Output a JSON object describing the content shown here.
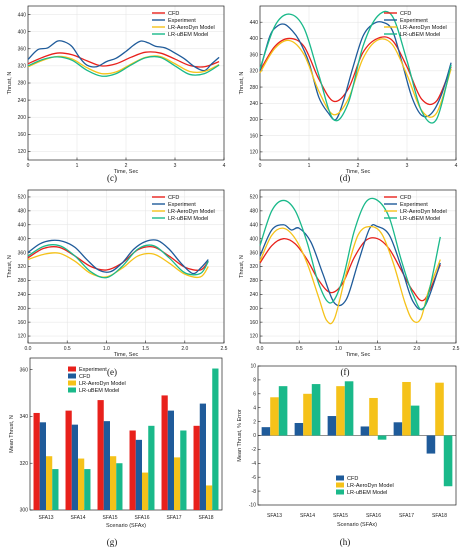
{
  "colors": {
    "cfd": "#e8211c",
    "experiment": "#1f5b9a",
    "aerodyn": "#f5c21a",
    "ubem": "#1ab98a",
    "bar_experiment": "#e8211c",
    "bar_cfd": "#1f5b9a",
    "bar_aerodyn": "#f5c21a",
    "bar_ubem": "#1ab98a"
  },
  "line_legend": [
    "CFD",
    "Experiment",
    "LR-AeroDyn Model",
    "LR-uBEM Model"
  ],
  "bar_legend": [
    "Experiment",
    "CFD",
    "LR-AeroDyn Model",
    "LR-uBEM Model"
  ],
  "chart_data": [
    {
      "id": "c",
      "type": "line",
      "caption": "(c)",
      "xlabel": "Time, Sec",
      "ylabel": "Thrust, N",
      "xlim": [
        0,
        4
      ],
      "ylim": [
        100,
        460
      ],
      "xticks": [
        0,
        1,
        2,
        3,
        4
      ],
      "yticks": [
        120,
        160,
        200,
        240,
        280,
        320,
        360,
        400,
        440
      ],
      "legend_position": "top-right",
      "series": [
        {
          "name": "CFD",
          "x": [
            0,
            0.3,
            0.6,
            0.9,
            1.2,
            1.5,
            1.8,
            2.1,
            2.4,
            2.7,
            3.0,
            3.3,
            3.6,
            3.9
          ],
          "y": [
            325,
            340,
            350,
            346,
            332,
            320,
            325,
            340,
            352,
            350,
            336,
            321,
            318,
            330
          ]
        },
        {
          "name": "Experiment",
          "x": [
            0,
            0.2,
            0.4,
            0.6,
            0.75,
            0.9,
            1.05,
            1.2,
            1.4,
            1.6,
            1.8,
            2.0,
            2.15,
            2.3,
            2.45,
            2.6,
            2.8,
            3.0,
            3.2,
            3.4,
            3.6,
            3.75,
            3.9
          ],
          "y": [
            335,
            358,
            362,
            378,
            376,
            365,
            340,
            322,
            318,
            330,
            338,
            354,
            368,
            378,
            374,
            366,
            362,
            350,
            336,
            318,
            309,
            325,
            340
          ]
        },
        {
          "name": "LR-AeroDyn Model",
          "x": [
            0,
            0.3,
            0.6,
            0.9,
            1.2,
            1.5,
            1.8,
            2.1,
            2.4,
            2.7,
            3.0,
            3.3,
            3.6,
            3.9
          ],
          "y": [
            318,
            333,
            342,
            336,
            316,
            302,
            306,
            324,
            340,
            342,
            325,
            307,
            307,
            323
          ]
        },
        {
          "name": "LR-uBEM Model",
          "x": [
            0,
            0.3,
            0.6,
            0.9,
            1.2,
            1.5,
            1.8,
            2.1,
            2.4,
            2.7,
            3.0,
            3.3,
            3.6,
            3.9
          ],
          "y": [
            320,
            335,
            341,
            333,
            310,
            296,
            302,
            322,
            339,
            340,
            320,
            300,
            302,
            322
          ]
        }
      ]
    },
    {
      "id": "d",
      "type": "line",
      "caption": "(d)",
      "xlabel": "Time, Sec",
      "ylabel": "Thrust, N",
      "xlim": [
        0,
        4
      ],
      "ylim": [
        100,
        480
      ],
      "xticks": [
        0,
        1,
        2,
        3,
        4
      ],
      "yticks": [
        120,
        160,
        200,
        240,
        280,
        320,
        360,
        400,
        440
      ],
      "legend_position": "top-right",
      "series": [
        {
          "name": "CFD",
          "x": [
            0,
            0.3,
            0.6,
            0.9,
            1.2,
            1.5,
            1.8,
            2.1,
            2.4,
            2.7,
            3.0,
            3.3,
            3.6,
            3.9
          ],
          "y": [
            320,
            380,
            400,
            380,
            300,
            245,
            275,
            365,
            400,
            395,
            330,
            250,
            245,
            330
          ]
        },
        {
          "name": "Experiment",
          "x": [
            0,
            0.2,
            0.35,
            0.5,
            0.65,
            0.8,
            1.0,
            1.2,
            1.4,
            1.55,
            1.7,
            1.9,
            2.1,
            2.3,
            2.5,
            2.7,
            2.9,
            3.1,
            3.3,
            3.5,
            3.7,
            3.9
          ],
          "y": [
            320,
            405,
            430,
            435,
            420,
            395,
            340,
            255,
            215,
            200,
            245,
            330,
            405,
            435,
            440,
            420,
            340,
            255,
            210,
            215,
            260,
            340
          ]
        },
        {
          "name": "LR-AeroDyn Model",
          "x": [
            0,
            0.3,
            0.6,
            0.9,
            1.2,
            1.5,
            1.8,
            2.1,
            2.4,
            2.7,
            3.0,
            3.3,
            3.6,
            3.9
          ],
          "y": [
            315,
            375,
            395,
            360,
            270,
            212,
            250,
            350,
            396,
            385,
            310,
            222,
            215,
            325
          ]
        },
        {
          "name": "LR-uBEM Model",
          "x": [
            0,
            0.3,
            0.6,
            0.9,
            1.2,
            1.5,
            1.8,
            2.1,
            2.4,
            2.7,
            3.0,
            3.3,
            3.6,
            3.9
          ],
          "y": [
            325,
            430,
            460,
            425,
            310,
            200,
            240,
            380,
            455,
            455,
            345,
            220,
            200,
            335
          ]
        }
      ]
    },
    {
      "id": "e",
      "type": "line",
      "caption": "(e)",
      "xlabel": "Time, Sec",
      "ylabel": "Thrust, N",
      "xlim": [
        0,
        2.5
      ],
      "ylim": [
        100,
        540
      ],
      "xticks": [
        0.0,
        0.5,
        1.0,
        1.5,
        2.0,
        2.5
      ],
      "yticks": [
        120,
        160,
        200,
        240,
        280,
        320,
        360,
        400,
        440,
        480,
        520
      ],
      "legend_position": "top-right",
      "series": [
        {
          "name": "CFD",
          "x": [
            0,
            0.2,
            0.4,
            0.6,
            0.8,
            1.0,
            1.2,
            1.4,
            1.6,
            1.8,
            2.0,
            2.2,
            2.3
          ],
          "y": [
            345,
            372,
            375,
            350,
            320,
            310,
            330,
            368,
            376,
            350,
            318,
            310,
            335
          ]
        },
        {
          "name": "Experiment",
          "x": [
            0,
            0.15,
            0.3,
            0.45,
            0.6,
            0.75,
            0.9,
            1.05,
            1.2,
            1.35,
            1.5,
            1.65,
            1.8,
            1.95,
            2.1,
            2.2,
            2.3
          ],
          "y": [
            360,
            385,
            395,
            392,
            375,
            340,
            310,
            305,
            330,
            370,
            392,
            395,
            370,
            330,
            300,
            315,
            340
          ]
        },
        {
          "name": "LR-AeroDyn Model",
          "x": [
            0,
            0.2,
            0.4,
            0.6,
            0.8,
            1.0,
            1.2,
            1.4,
            1.6,
            1.8,
            2.0,
            2.2,
            2.3
          ],
          "y": [
            340,
            355,
            358,
            335,
            300,
            290,
            315,
            350,
            356,
            330,
            298,
            290,
            320
          ]
        },
        {
          "name": "LR-uBEM Model",
          "x": [
            0,
            0.2,
            0.4,
            0.6,
            0.8,
            1.0,
            1.2,
            1.4,
            1.6,
            1.8,
            2.0,
            2.2,
            2.3
          ],
          "y": [
            350,
            378,
            380,
            350,
            305,
            288,
            320,
            370,
            380,
            345,
            302,
            300,
            335
          ]
        }
      ]
    },
    {
      "id": "f",
      "type": "line",
      "caption": "(f)",
      "xlabel": "Time, Sec",
      "ylabel": "Thrust, N",
      "xlim": [
        0,
        2.5
      ],
      "ylim": [
        100,
        540
      ],
      "xticks": [
        0.0,
        0.5,
        1.0,
        1.5,
        2.0,
        2.5
      ],
      "yticks": [
        120,
        160,
        200,
        240,
        280,
        320,
        360,
        400,
        440,
        480,
        520
      ],
      "legend_position": "top-right",
      "series": [
        {
          "name": "CFD",
          "x": [
            0,
            0.15,
            0.3,
            0.45,
            0.6,
            0.75,
            0.9,
            1.05,
            1.2,
            1.35,
            1.5,
            1.65,
            1.8,
            1.95,
            2.1,
            2.3
          ],
          "y": [
            330,
            380,
            400,
            385,
            340,
            280,
            245,
            270,
            345,
            395,
            400,
            370,
            310,
            250,
            225,
            325
          ]
        },
        {
          "name": "Experiment",
          "x": [
            0,
            0.15,
            0.3,
            0.4,
            0.5,
            0.65,
            0.8,
            0.95,
            1.1,
            1.25,
            1.4,
            1.5,
            1.65,
            1.8,
            1.95,
            2.1,
            2.3
          ],
          "y": [
            350,
            425,
            440,
            425,
            430,
            390,
            300,
            215,
            225,
            330,
            430,
            435,
            410,
            320,
            220,
            205,
            330
          ]
        },
        {
          "name": "LR-AeroDyn Model",
          "x": [
            0,
            0.15,
            0.3,
            0.45,
            0.6,
            0.75,
            0.85,
            0.95,
            1.1,
            1.25,
            1.4,
            1.55,
            1.7,
            1.85,
            1.95,
            2.05,
            2.15,
            2.3
          ],
          "y": [
            335,
            410,
            430,
            400,
            330,
            230,
            165,
            170,
            300,
            410,
            435,
            415,
            330,
            215,
            165,
            170,
            250,
            340
          ]
        },
        {
          "name": "LR-uBEM Model",
          "x": [
            0,
            0.15,
            0.3,
            0.45,
            0.6,
            0.75,
            0.9,
            1.05,
            1.2,
            1.35,
            1.5,
            1.65,
            1.8,
            1.95,
            2.1,
            2.3
          ],
          "y": [
            380,
            480,
            510,
            480,
            390,
            270,
            215,
            280,
            420,
            505,
            510,
            460,
            340,
            240,
            205,
            405
          ]
        }
      ]
    },
    {
      "id": "g",
      "type": "bar",
      "caption": "(g)",
      "xlabel": "Scenario (SFAx)",
      "ylabel": "Mean Thrust, N",
      "ylim": [
        300,
        365
      ],
      "yticks": [
        300,
        320,
        340,
        360
      ],
      "legend_position": "top-left",
      "categories": [
        "SFA13",
        "SFA14",
        "SFA15",
        "SFA16",
        "SFA17",
        "SFA18"
      ],
      "series": [
        {
          "name": "Experiment",
          "values": [
            341.5,
            342.5,
            347,
            334,
            349,
            336
          ]
        },
        {
          "name": "CFD",
          "values": [
            337.5,
            336.5,
            338,
            330,
            342.5,
            345.5
          ]
        },
        {
          "name": "LR-AeroDyn Model",
          "values": [
            323,
            322,
            323,
            316,
            322.5,
            310.5
          ]
        },
        {
          "name": "LR-uBEM Model",
          "values": [
            317.5,
            317.5,
            320,
            336,
            334,
            360.5
          ]
        }
      ]
    },
    {
      "id": "h",
      "type": "bar",
      "caption": "(h)",
      "xlabel": "Scenario (SFAx)",
      "ylabel": "Mean Thrust, % Error",
      "ylim": [
        -10,
        10
      ],
      "yticks": [
        -10,
        -8,
        -6,
        -4,
        -2,
        0,
        2,
        4,
        6,
        8,
        10
      ],
      "legend_position": "bottom-left",
      "categories": [
        "SFA13",
        "SFA14",
        "SFA15",
        "SFA16",
        "SFA17",
        "SFA18"
      ],
      "series": [
        {
          "name": "CFD",
          "values": [
            1.2,
            1.8,
            2.8,
            1.3,
            1.9,
            -2.6
          ]
        },
        {
          "name": "LR-AeroDyn Model",
          "values": [
            5.5,
            6.0,
            7.1,
            5.4,
            7.7,
            7.6
          ]
        },
        {
          "name": "LR-uBEM Model",
          "values": [
            7.1,
            7.4,
            7.8,
            -0.6,
            4.3,
            -7.3
          ]
        }
      ]
    }
  ]
}
